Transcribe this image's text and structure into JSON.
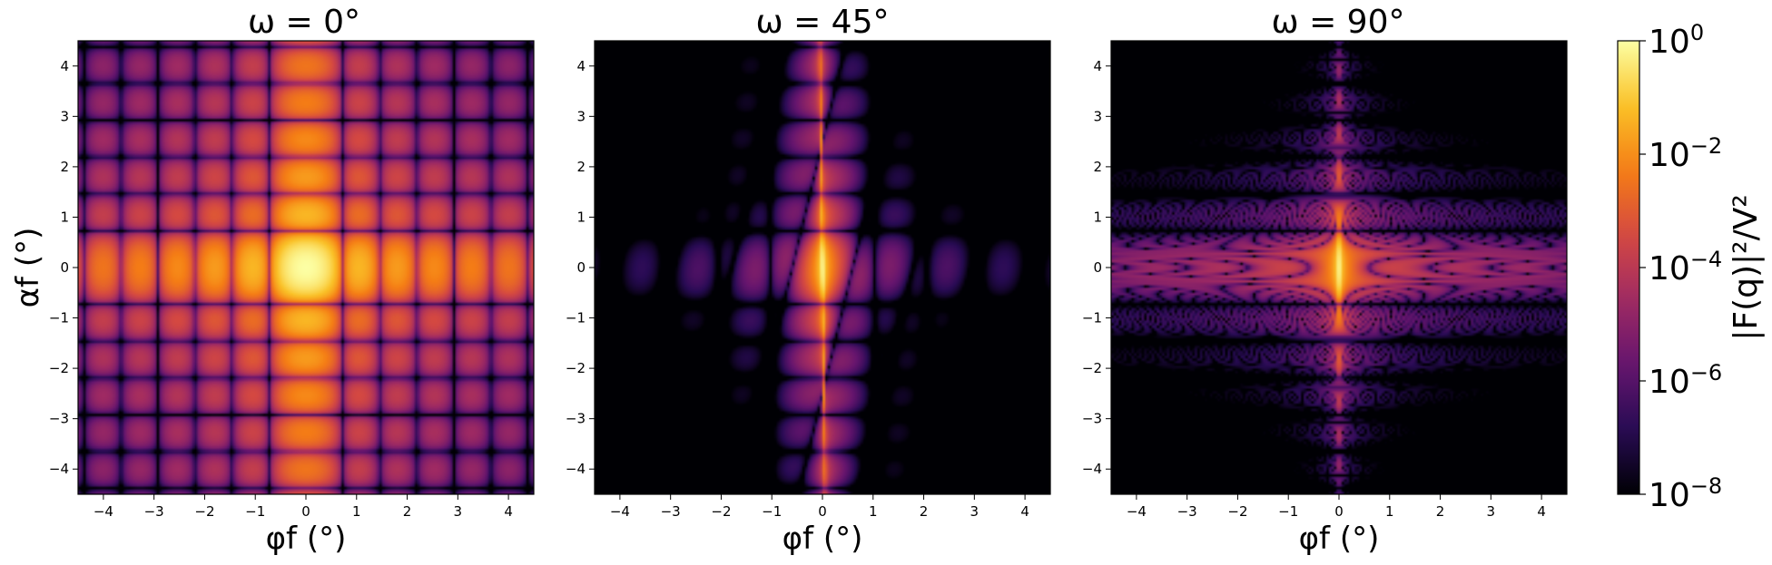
{
  "chart_data": {
    "type": "heatmap",
    "colormap": "inferno",
    "color_scale": "log",
    "panels": [
      {
        "title": "ω = 0°",
        "omega_deg": 0,
        "xlabel": "φf (°)",
        "ylabel": "αf (°)",
        "xlim": [
          -4.5,
          4.5
        ],
        "ylim": [
          -4.5,
          4.5
        ],
        "xticks": [
          -4,
          -3,
          -2,
          -1,
          0,
          1,
          2,
          3,
          4
        ],
        "yticks": [
          -4,
          -3,
          -2,
          -1,
          0,
          1,
          2,
          3,
          4
        ]
      },
      {
        "title": "ω = 45°",
        "omega_deg": 45,
        "xlabel": "φf (°)",
        "ylabel": "",
        "xlim": [
          -4.5,
          4.5
        ],
        "ylim": [
          -4.5,
          4.5
        ],
        "xticks": [
          -4,
          -3,
          -2,
          -1,
          0,
          1,
          2,
          3,
          4
        ],
        "yticks": [
          -4,
          -3,
          -2,
          -1,
          0,
          1,
          2,
          3,
          4
        ]
      },
      {
        "title": "ω = 90°",
        "omega_deg": 90,
        "xlabel": "φf (°)",
        "ylabel": "",
        "xlim": [
          -4.5,
          4.5
        ],
        "ylim": [
          -4.5,
          4.5
        ],
        "xticks": [
          -4,
          -3,
          -2,
          -1,
          0,
          1,
          2,
          3,
          4
        ],
        "yticks": [
          -4,
          -3,
          -2,
          -1,
          0,
          1,
          2,
          3,
          4
        ]
      }
    ],
    "colorbar": {
      "label": "|F(q)|²/V²",
      "range": [
        1e-08,
        1
      ],
      "ticks": [
        {
          "value": 1,
          "mantissa": "10",
          "exponent": "0"
        },
        {
          "value": 0.01,
          "mantissa": "10",
          "exponent": "−2"
        },
        {
          "value": 0.0001,
          "mantissa": "10",
          "exponent": "−4"
        },
        {
          "value": 1e-06,
          "mantissa": "10",
          "exponent": "−6"
        },
        {
          "value": 1e-08,
          "mantissa": "10",
          "exponent": "−8"
        }
      ]
    }
  }
}
